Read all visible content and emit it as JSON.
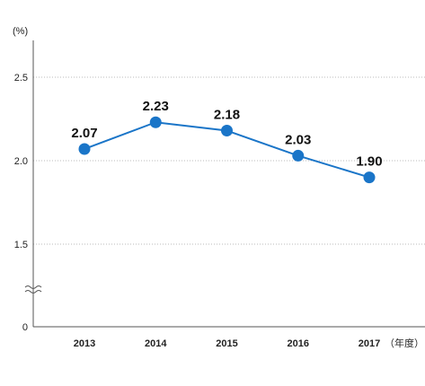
{
  "chart_data": {
    "type": "line",
    "y_unit": "(%)",
    "x_unit": "（年度）",
    "categories": [
      "2013",
      "2014",
      "2015",
      "2016",
      "2017"
    ],
    "series": [
      {
        "values": [
          2.07,
          2.23,
          2.18,
          2.03,
          1.9
        ],
        "labels": [
          "2.07",
          "2.23",
          "2.18",
          "2.03",
          "1.90"
        ],
        "color": "#1a75c8"
      }
    ],
    "y_ticks": [
      "0",
      "1.5",
      "2.0",
      "2.5"
    ],
    "ylim_broken": [
      1.5,
      2.5
    ],
    "axis_break": true,
    "grid": "dotted-horizontal",
    "colors": {
      "line": "#1a75c8",
      "marker": "#1a75c8",
      "grid": "#bbbbbb",
      "axis": "#555555"
    }
  }
}
